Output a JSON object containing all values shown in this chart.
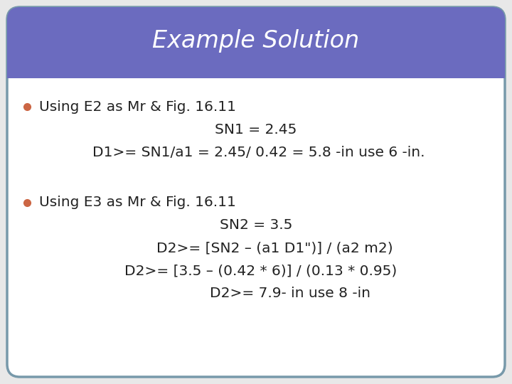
{
  "title": "Example Solution",
  "title_bg_color": "#6b6bbf",
  "title_text_color": "#ffffff",
  "body_bg_color": "#ffffff",
  "border_color": "#7799aa",
  "bullet_color": "#cc6644",
  "text_color": "#222222",
  "bullet1_lines": [
    "Using E2 as Mr & Fig. 16.11",
    "SN1 = 2.45",
    "D1>= SN1/a1 = 2.45/ 0.42 = 5.8 -in use 6 -in."
  ],
  "bullet2_lines": [
    "Using E3 as Mr & Fig. 16.11",
    "SN2 = 3.5",
    "D2>= [SN2 – (a1 D1\")] / (a2 m2)",
    "D2>= [3.5 – (0.42 * 6)] / (0.13 * 0.95)",
    "D2>= 7.9- in use 8 -in"
  ],
  "font_size": 14.5,
  "title_font_size": 24
}
